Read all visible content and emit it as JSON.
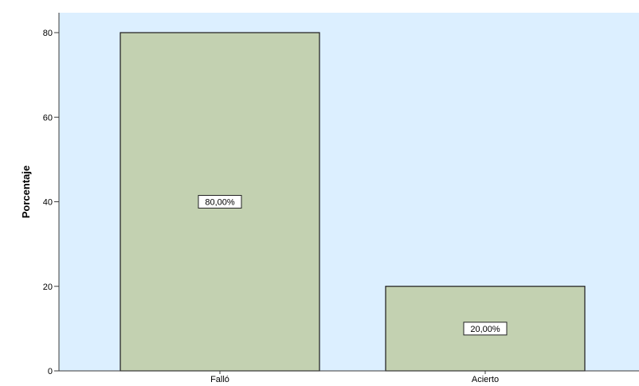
{
  "chart_data": {
    "type": "bar",
    "title": "",
    "xlabel": "",
    "ylabel": "Porcentaje",
    "categories": [
      "Falló",
      "Acierto"
    ],
    "values": [
      80,
      20
    ],
    "data_labels": [
      "80,00%",
      "20,00%"
    ],
    "yticks": [
      0,
      20,
      40,
      60,
      80
    ],
    "ylim": [
      0,
      80
    ],
    "grid": false,
    "colors": {
      "plot_background": "#dcefff",
      "bar_fill": "#c3d1b1",
      "bar_stroke": "#1a1a1a",
      "axis": "#3a3a3a"
    }
  }
}
